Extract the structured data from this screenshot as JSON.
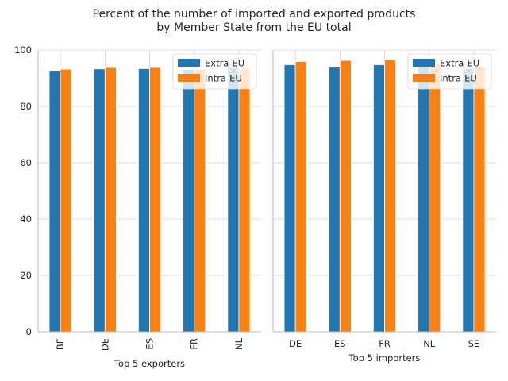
{
  "chart_data": [
    {
      "type": "bar",
      "title": "Percent of the number of imported and exported products\nby Member State from the EU total",
      "xlabel": "Top 5 exporters",
      "ylabel": "",
      "categories": [
        "BE",
        "DE",
        "ES",
        "FR",
        "NL"
      ],
      "xtick_rotation": 90,
      "series": [
        {
          "name": "Extra-EU",
          "values": [
            92.5,
            93.3,
            93.4,
            93.1,
            93.7
          ],
          "color": "#1f77b4"
        },
        {
          "name": "Intra-EU",
          "values": [
            93.2,
            93.8,
            93.8,
            93.1,
            93.3
          ],
          "color": "#ff7f0e"
        }
      ],
      "ylim": [
        0,
        100
      ],
      "yticks": [
        0,
        20,
        40,
        60,
        80,
        100
      ],
      "grid": true,
      "legend_position": "top-right"
    },
    {
      "type": "bar",
      "xlabel": "Top 5 importers",
      "ylabel": "",
      "categories": [
        "DE",
        "ES",
        "FR",
        "NL",
        "SE"
      ],
      "xtick_rotation": 0,
      "series": [
        {
          "name": "Extra-EU",
          "values": [
            94.8,
            93.9,
            94.8,
            94.7,
            93.4
          ],
          "color": "#1f77b4"
        },
        {
          "name": "Intra-EU",
          "values": [
            95.9,
            96.3,
            96.6,
            95.2,
            94.0
          ],
          "color": "#ff7f0e"
        }
      ],
      "ylim": [
        0,
        100
      ],
      "yticks": [
        0,
        20,
        40,
        60,
        80,
        100
      ],
      "sharey": true,
      "grid": true,
      "legend_position": "top-right"
    }
  ]
}
